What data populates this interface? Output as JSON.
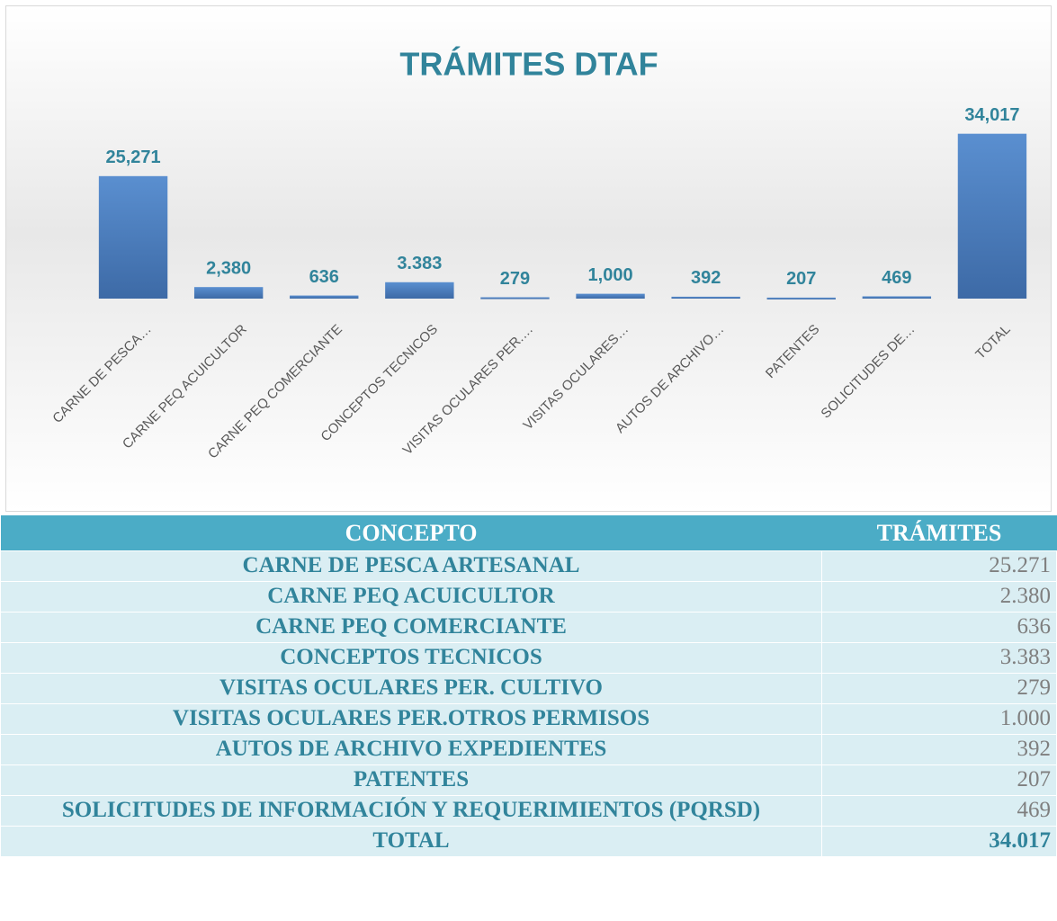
{
  "chart_data": {
    "type": "bar",
    "title": "TRÁMITES DTAF",
    "categories": [
      "CARNE DE PESCA…",
      "CARNE PEQ ACUICULTOR",
      "CARNE PEQ COMERCIANTE",
      "CONCEPTOS TECNICOS",
      "VISITAS OCULARES PER.…",
      "VISITAS OCULARES…",
      "AUTOS DE ARCHIVO…",
      "PATENTES",
      "SOLICITUDES DE…",
      "TOTAL"
    ],
    "values": [
      25271,
      2380,
      636,
      3383,
      279,
      1000,
      392,
      207,
      469,
      34017
    ],
    "value_labels": [
      "25,271",
      "2,380",
      "636",
      "3.383",
      "279",
      "1,000",
      "392",
      "207",
      "469",
      "34,017"
    ],
    "color": "#4f81bd",
    "ylim": [
      0,
      36000
    ]
  },
  "table": {
    "header": [
      "CONCEPTO",
      "TRÁMITES"
    ],
    "rows": [
      [
        "CARNE DE PESCA ARTESANAL",
        "25.271"
      ],
      [
        "CARNE PEQ ACUICULTOR",
        "2.380"
      ],
      [
        "CARNE PEQ COMERCIANTE",
        "636"
      ],
      [
        "CONCEPTOS TECNICOS",
        "3.383"
      ],
      [
        "VISITAS OCULARES PER. CULTIVO",
        "279"
      ],
      [
        "VISITAS OCULARES PER.OTROS PERMISOS",
        "1.000"
      ],
      [
        "AUTOS DE ARCHIVO EXPEDIENTES",
        "392"
      ],
      [
        "PATENTES",
        "207"
      ],
      [
        "SOLICITUDES DE INFORMACIÓN Y REQUERIMIENTOS (PQRSD)",
        "469"
      ],
      [
        "TOTAL",
        "34.017"
      ]
    ]
  }
}
